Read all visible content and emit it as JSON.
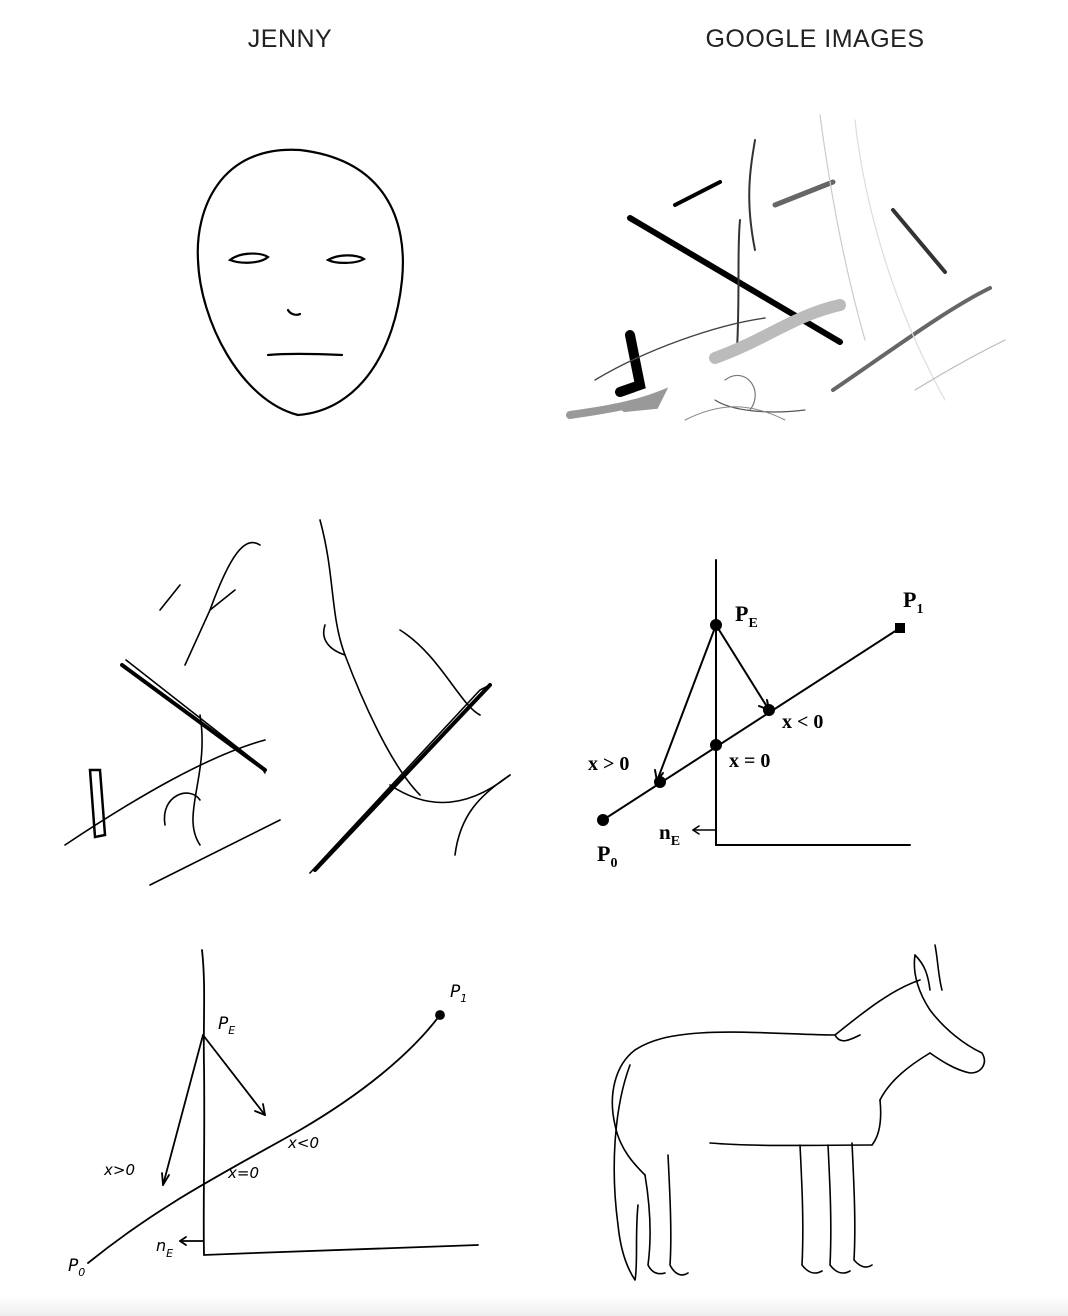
{
  "columns": {
    "left_title": "JENNY",
    "right_title": "GOOGLE IMAGES"
  },
  "diagram_labels": {
    "printed": {
      "pe_main": "P",
      "pe_sub": "E",
      "p1_main": "P",
      "p1_sub": "1",
      "p0_main": "P",
      "p0_sub": "0",
      "ne_main": "n",
      "ne_sub": "E",
      "x_gt": "x > 0",
      "x_eq": "x = 0",
      "x_lt": "x < 0"
    },
    "hand": {
      "pe_main": "P",
      "pe_sub": "E",
      "p1_main": "P",
      "p1_sub": "1",
      "p0_main": "P",
      "p0_sub": "0",
      "ne_main": "n",
      "ne_sub": "E",
      "x_gt": "x>0",
      "x_eq": "x=0",
      "x_lt": "x<0"
    }
  },
  "colors": {
    "ink": "#000000",
    "dark_gray": "#555555",
    "mid_gray": "#999999",
    "light_gray": "#c8c8c8"
  }
}
